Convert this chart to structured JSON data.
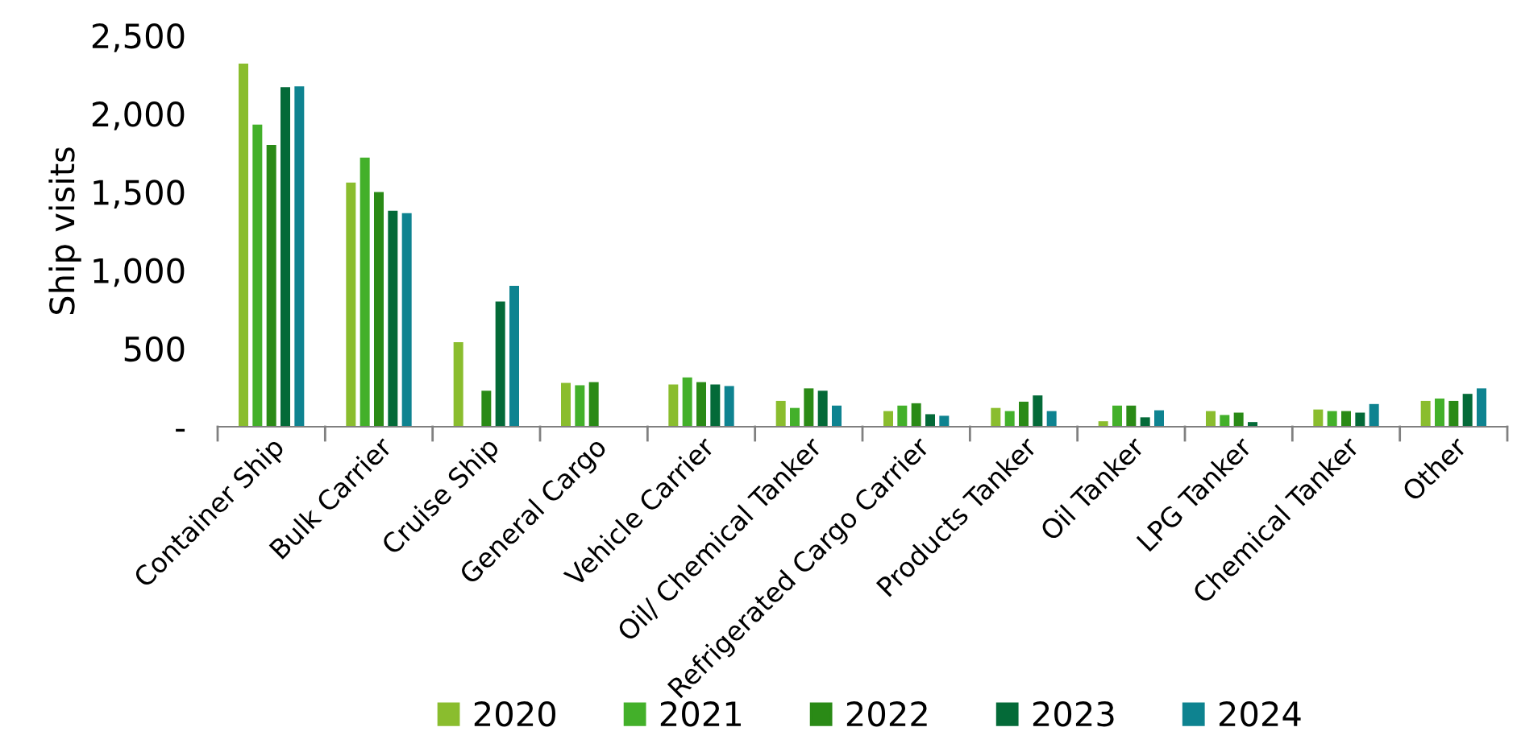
{
  "chart_data": {
    "type": "bar",
    "ylabel": "Ship visits",
    "categories": [
      "Container Ship",
      "Bulk Carrier",
      "Cruise Ship",
      "General Cargo",
      "Vehicle Carrier",
      "Oil/ Chemical Tanker",
      "Refrigerated Cargo Carrier",
      "Products Tanker",
      "Oil Tanker",
      "LPG Tanker",
      "Chemical Tanker",
      "Other"
    ],
    "series": [
      {
        "name": "2020",
        "color": "#8abd2e",
        "values": [
          2320,
          1560,
          540,
          280,
          270,
          165,
          100,
          120,
          35,
          100,
          110,
          165
        ]
      },
      {
        "name": "2021",
        "color": "#43b02a",
        "values": [
          1930,
          1720,
          null,
          265,
          315,
          120,
          135,
          100,
          135,
          75,
          100,
          180
        ]
      },
      {
        "name": "2022",
        "color": "#2a8a16",
        "values": [
          1800,
          1500,
          230,
          285,
          285,
          245,
          150,
          160,
          135,
          90,
          100,
          165
        ]
      },
      {
        "name": "2023",
        "color": "#046a38",
        "values": [
          2170,
          1380,
          800,
          null,
          270,
          230,
          80,
          200,
          60,
          30,
          90,
          210
        ]
      },
      {
        "name": "2024",
        "color": "#0e8390",
        "values": [
          2175,
          1365,
          900,
          null,
          260,
          135,
          70,
          100,
          105,
          null,
          145,
          245
        ]
      }
    ],
    "ylim": [
      0,
      2500
    ],
    "yticks": [
      {
        "value": 0,
        "label": "-"
      },
      {
        "value": 500,
        "label": "500"
      },
      {
        "value": 1000,
        "label": "1,000"
      },
      {
        "value": 1500,
        "label": "1,500"
      },
      {
        "value": 2000,
        "label": "2,000"
      },
      {
        "value": 2500,
        "label": "2,500"
      }
    ],
    "grid": false,
    "legend": "bottom"
  }
}
